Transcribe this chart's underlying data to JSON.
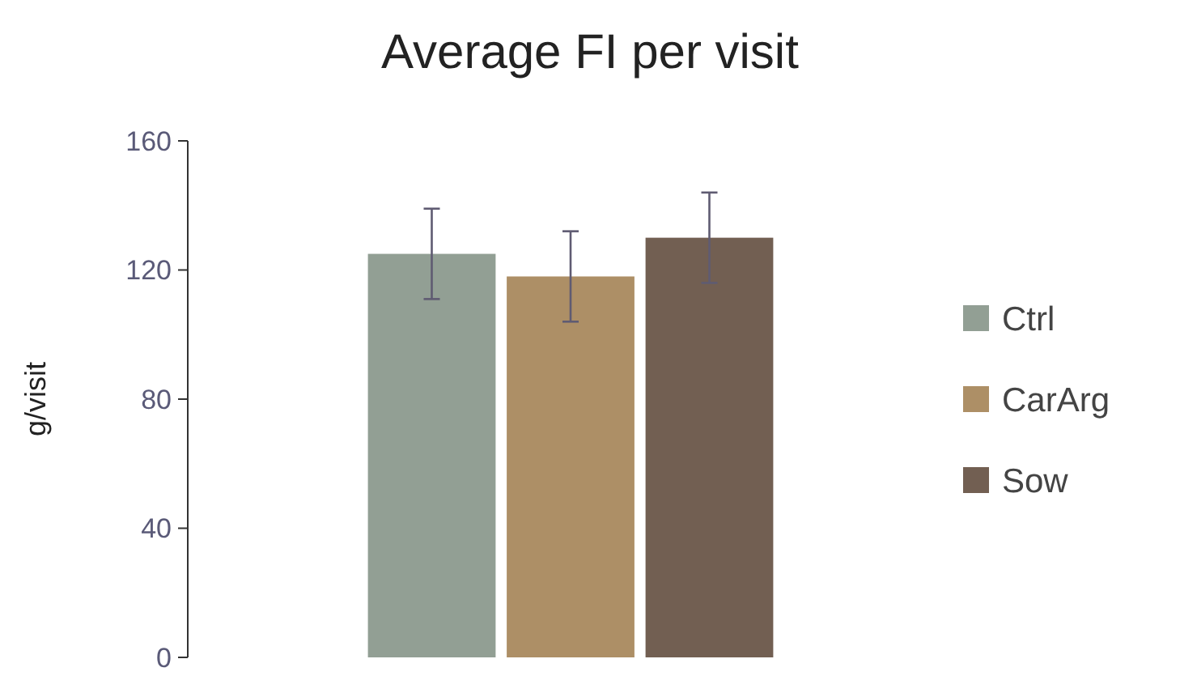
{
  "chart_data": {
    "type": "bar",
    "title": "Average FI per visit",
    "ylabel": "g/visit",
    "categories": [
      null
    ],
    "series": [
      {
        "name": "Ctrl",
        "color": "#929f94",
        "values": [
          125
        ],
        "errors": [
          14
        ]
      },
      {
        "name": "CarArg",
        "color": "#ad8f66",
        "values": [
          118
        ],
        "errors": [
          14
        ]
      },
      {
        "name": "Sow",
        "color": "#725f52",
        "values": [
          130
        ],
        "errors": [
          14
        ]
      }
    ],
    "ylim": [
      0,
      160
    ],
    "yticks": [
      0,
      40,
      80,
      120,
      160
    ],
    "grid": false,
    "legend": "right"
  }
}
